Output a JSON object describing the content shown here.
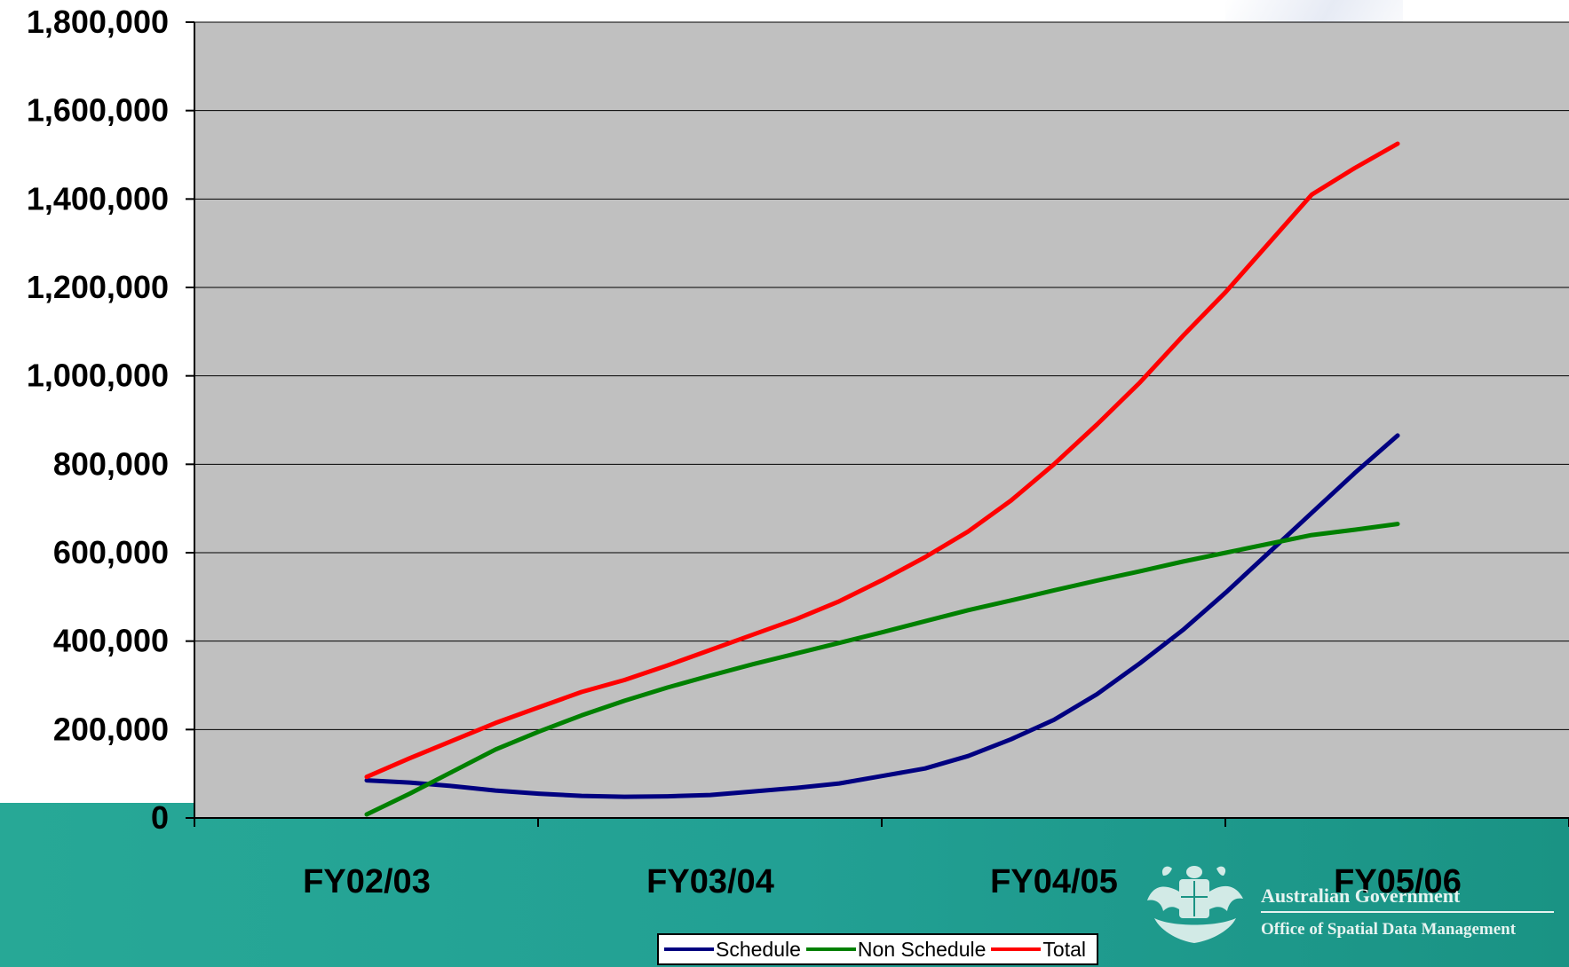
{
  "chart_data": {
    "type": "line",
    "categories": [
      "FY02/03",
      "FY03/04",
      "FY04/05",
      "FY05/06"
    ],
    "ylim": [
      0,
      1800000
    ],
    "yticks": [
      0,
      200000,
      400000,
      600000,
      800000,
      1000000,
      1200000,
      1400000,
      1600000,
      1800000
    ],
    "ytick_labels": [
      "0",
      "200,000",
      "400,000",
      "600,000",
      "800,000",
      "1,000,000",
      "1,200,000",
      "1,400,000",
      "1,600,000",
      "1,800,000"
    ],
    "grid": true,
    "legend_position": "bottom",
    "x": [
      0,
      0.125,
      0.25,
      0.375,
      0.5,
      0.625,
      0.75,
      0.875,
      1,
      1.125,
      1.25,
      1.375,
      1.5,
      1.625,
      1.75,
      1.875,
      2,
      2.125,
      2.25,
      2.375,
      2.5,
      2.625,
      2.75,
      2.875,
      3
    ],
    "series": [
      {
        "name": "Schedule",
        "color": "#000080",
        "values": [
          85000,
          80000,
          72000,
          62000,
          55000,
          50000,
          48000,
          49000,
          52000,
          60000,
          68000,
          78000,
          95000,
          112000,
          140000,
          178000,
          222000,
          280000,
          350000,
          425000,
          510000,
          600000,
          690000,
          780000,
          865000
        ]
      },
      {
        "name": "Non Schedule",
        "color": "#008000",
        "values": [
          8000,
          55000,
          105000,
          155000,
          195000,
          232000,
          265000,
          295000,
          322000,
          348000,
          372000,
          396000,
          420000,
          445000,
          470000,
          492000,
          515000,
          537000,
          558000,
          580000,
          600000,
          620000,
          640000,
          652000,
          665000
        ]
      },
      {
        "name": "Total",
        "color": "#ff0000",
        "values": [
          93000,
          135000,
          175000,
          215000,
          250000,
          285000,
          312000,
          345000,
          380000,
          415000,
          450000,
          490000,
          538000,
          590000,
          648000,
          718000,
          800000,
          890000,
          985000,
          1090000,
          1190000,
          1300000,
          1410000,
          1470000,
          1525000
        ]
      }
    ]
  },
  "logo": {
    "government": "Australian Government",
    "office": "Office of Spatial Data Management"
  }
}
